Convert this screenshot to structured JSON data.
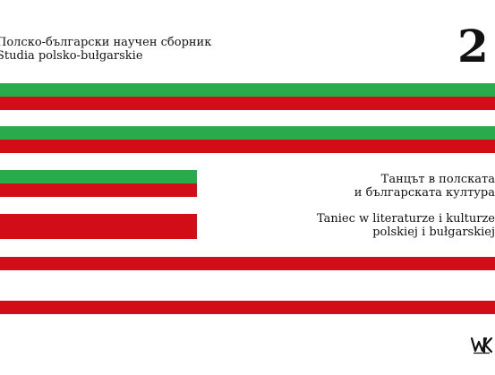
{
  "series": {
    "bg_line": "Полско-български научен сборник",
    "pl_line": "Studia polsko-bułgarskie"
  },
  "volume_number": "2",
  "book_title": {
    "bg_line1": "Танцът в полската",
    "bg_line2": "и българската култура",
    "pl_line1": "Taniec w literaturze i kulturze",
    "pl_line2": "polskiej i bułgarskiej"
  },
  "colors": {
    "green": "#2aab4b",
    "red": "#d30d17"
  },
  "logo": {
    "icon": "publisher-logo-icon"
  }
}
